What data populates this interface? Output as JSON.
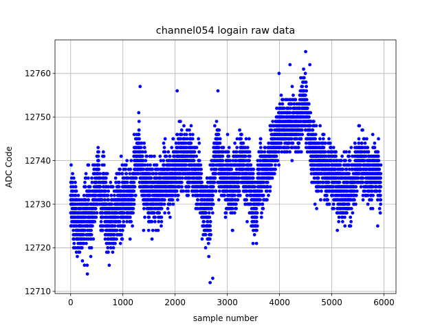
{
  "chart_data": {
    "type": "scatter",
    "title": "channel054 logain raw data",
    "xlabel": "sample number",
    "ylabel": "ADC Code",
    "xlim": [
      -300,
      6230
    ],
    "ylim": [
      12709.5,
      12767.7
    ],
    "xticks": [
      0,
      1000,
      2000,
      3000,
      4000,
      5000,
      6000
    ],
    "yticks": [
      12710,
      12720,
      12730,
      12740,
      12750,
      12760
    ],
    "grid": true,
    "marker_color": "#0000ff",
    "n_points": 5940,
    "trend": [
      {
        "x": 0,
        "y": 12730,
        "spread": 6
      },
      {
        "x": 300,
        "y": 12727,
        "spread": 7
      },
      {
        "x": 500,
        "y": 12733,
        "spread": 6
      },
      {
        "x": 700,
        "y": 12727,
        "spread": 7
      },
      {
        "x": 900,
        "y": 12730,
        "spread": 7
      },
      {
        "x": 1100,
        "y": 12733,
        "spread": 6
      },
      {
        "x": 1300,
        "y": 12741,
        "spread": 6
      },
      {
        "x": 1500,
        "y": 12734,
        "spread": 6
      },
      {
        "x": 1800,
        "y": 12734,
        "spread": 6
      },
      {
        "x": 2100,
        "y": 12741,
        "spread": 6
      },
      {
        "x": 2400,
        "y": 12739,
        "spread": 6
      },
      {
        "x": 2650,
        "y": 12727,
        "spread": 7
      },
      {
        "x": 2800,
        "y": 12740,
        "spread": 6
      },
      {
        "x": 3000,
        "y": 12735,
        "spread": 6
      },
      {
        "x": 3300,
        "y": 12737,
        "spread": 6
      },
      {
        "x": 3550,
        "y": 12731,
        "spread": 7
      },
      {
        "x": 3800,
        "y": 12739,
        "spread": 6
      },
      {
        "x": 4000,
        "y": 12747,
        "spread": 5
      },
      {
        "x": 4200,
        "y": 12748,
        "spread": 5
      },
      {
        "x": 4500,
        "y": 12749,
        "spread": 6
      },
      {
        "x": 4700,
        "y": 12740,
        "spread": 6
      },
      {
        "x": 5000,
        "y": 12738,
        "spread": 6
      },
      {
        "x": 5200,
        "y": 12730,
        "spread": 7
      },
      {
        "x": 5500,
        "y": 12737,
        "spread": 5
      },
      {
        "x": 5940,
        "y": 12738,
        "spread": 5
      }
    ],
    "outliers": [
      {
        "x": 4500,
        "y": 12765
      },
      {
        "x": 4580,
        "y": 12762
      },
      {
        "x": 4200,
        "y": 12762
      },
      {
        "x": 3990,
        "y": 12760
      },
      {
        "x": 2670,
        "y": 12712
      },
      {
        "x": 2720,
        "y": 12713
      },
      {
        "x": 320,
        "y": 12714
      },
      {
        "x": 1330,
        "y": 12757
      },
      {
        "x": 2040,
        "y": 12756
      },
      {
        "x": 2820,
        "y": 12756
      },
      {
        "x": 5880,
        "y": 12725
      }
    ]
  }
}
